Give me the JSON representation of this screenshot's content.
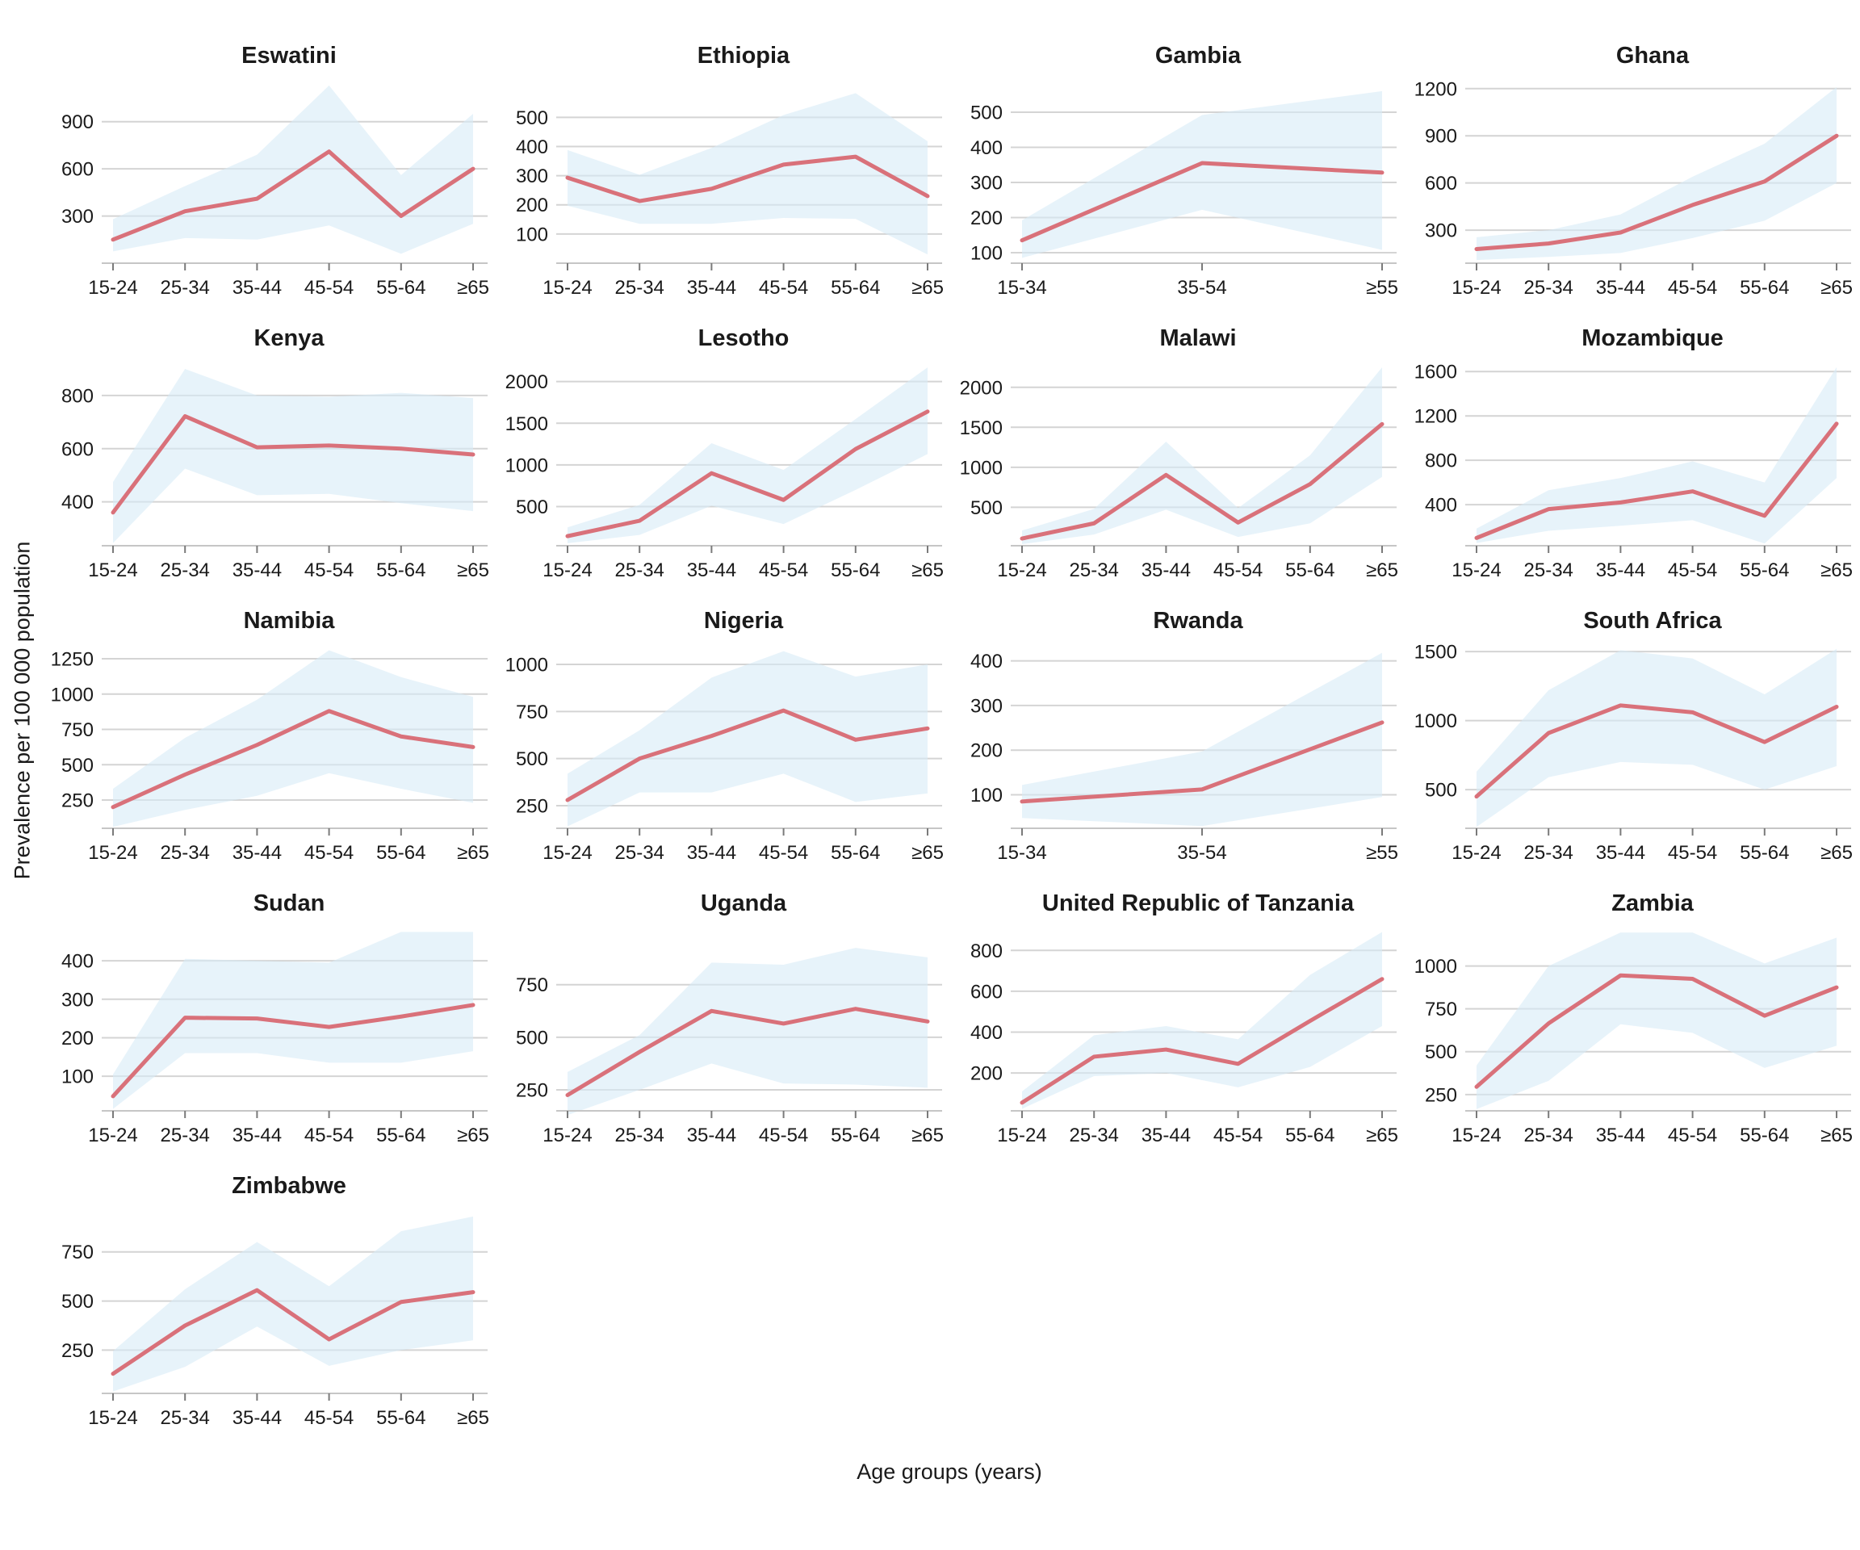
{
  "figure": {
    "y_axis_label": "Prevalence per 100 000 population",
    "x_axis_label": "Age groups (years)",
    "colors": {
      "line": "#d9717a",
      "band": "#d7ebf7",
      "gridline": "#d4d4d4",
      "axis_line": "#c6c6c6",
      "tick_mark": "#7a7a7a"
    }
  },
  "chart_data": [
    {
      "type": "line",
      "title": "Eswatini",
      "categories": [
        "15-24",
        "25-34",
        "35-44",
        "45-54",
        "55-64",
        "≥65"
      ],
      "values": [
        150,
        330,
        410,
        710,
        300,
        600
      ],
      "lower_ci": [
        75,
        160,
        150,
        240,
        60,
        250
      ],
      "upper_ci": [
        280,
        490,
        690,
        1130,
        560,
        950
      ],
      "yticks": [
        300,
        600,
        900
      ],
      "ylim": [
        0,
        1150
      ]
    },
    {
      "type": "line",
      "title": "Ethiopia",
      "categories": [
        "15-24",
        "25-34",
        "35-44",
        "45-54",
        "55-64",
        "≥65"
      ],
      "values": [
        293,
        213,
        255,
        338,
        365,
        230
      ],
      "lower_ci": [
        197,
        135,
        135,
        155,
        152,
        30
      ],
      "upper_ci": [
        388,
        303,
        395,
        508,
        583,
        418
      ],
      "yticks": [
        100,
        200,
        300,
        400,
        500
      ],
      "ylim": [
        0,
        620
      ]
    },
    {
      "type": "line",
      "title": "Gambia",
      "categories": [
        "15-34",
        "35-54",
        "≥55"
      ],
      "values": [
        135,
        355,
        328
      ],
      "lower_ci": [
        85,
        222,
        108
      ],
      "upper_ci": [
        192,
        492,
        560
      ],
      "yticks": [
        100,
        200,
        300,
        400,
        500
      ],
      "ylim": [
        70,
        585
      ]
    },
    {
      "type": "line",
      "title": "Ghana",
      "categories": [
        "15-24",
        "25-34",
        "35-44",
        "45-54",
        "55-64",
        "≥65"
      ],
      "values": [
        180,
        215,
        285,
        460,
        610,
        900
      ],
      "lower_ci": [
        110,
        130,
        155,
        250,
        360,
        600
      ],
      "upper_ci": [
        255,
        300,
        400,
        640,
        850,
        1210
      ],
      "yticks": [
        300,
        600,
        900,
        1200
      ],
      "ylim": [
        90,
        1240
      ]
    },
    {
      "type": "line",
      "title": "Kenya",
      "categories": [
        "15-24",
        "25-34",
        "35-44",
        "45-54",
        "55-64",
        "≥65"
      ],
      "values": [
        360,
        722,
        605,
        612,
        600,
        578
      ],
      "lower_ci": [
        245,
        525,
        425,
        430,
        395,
        365
      ],
      "upper_ci": [
        475,
        900,
        800,
        795,
        810,
        790
      ],
      "yticks": [
        400,
        600,
        800
      ],
      "ylim": [
        235,
        915
      ]
    },
    {
      "type": "line",
      "title": "Lesotho",
      "categories": [
        "15-24",
        "25-34",
        "35-44",
        "45-54",
        "55-64",
        "≥65"
      ],
      "values": [
        145,
        330,
        900,
        580,
        1190,
        1640
      ],
      "lower_ci": [
        60,
        160,
        510,
        290,
        700,
        1130
      ],
      "upper_ci": [
        250,
        520,
        1260,
        940,
        1550,
        2170
      ],
      "yticks": [
        500,
        1000,
        1500,
        2000
      ],
      "ylim": [
        30,
        2200
      ]
    },
    {
      "type": "line",
      "title": "Malawi",
      "categories": [
        "15-24",
        "25-34",
        "35-44",
        "45-54",
        "55-64",
        "≥65"
      ],
      "values": [
        110,
        300,
        905,
        310,
        790,
        1540
      ],
      "lower_ci": [
        40,
        160,
        470,
        130,
        300,
        880
      ],
      "upper_ci": [
        210,
        480,
        1320,
        490,
        1150,
        2250
      ],
      "yticks": [
        500,
        1000,
        1500,
        2000
      ],
      "ylim": [
        20,
        2280
      ]
    },
    {
      "type": "line",
      "title": "Mozambique",
      "categories": [
        "15-24",
        "25-34",
        "35-44",
        "45-54",
        "55-64",
        "≥65"
      ],
      "values": [
        100,
        360,
        420,
        520,
        300,
        1130
      ],
      "lower_ci": [
        55,
        165,
        210,
        260,
        50,
        640
      ],
      "upper_ci": [
        185,
        530,
        640,
        790,
        600,
        1640
      ],
      "yticks": [
        400,
        800,
        1200,
        1600
      ],
      "ylim": [
        30,
        1660
      ]
    },
    {
      "type": "line",
      "title": "Namibia",
      "categories": [
        "15-24",
        "25-34",
        "35-44",
        "45-54",
        "55-64",
        "≥65"
      ],
      "values": [
        200,
        430,
        640,
        880,
        700,
        625
      ],
      "lower_ci": [
        60,
        180,
        280,
        440,
        330,
        230
      ],
      "upper_ci": [
        330,
        690,
        960,
        1310,
        1120,
        980
      ],
      "yticks": [
        250,
        500,
        750,
        1000,
        1250
      ],
      "ylim": [
        50,
        1330
      ]
    },
    {
      "type": "line",
      "title": "Nigeria",
      "categories": [
        "15-24",
        "25-34",
        "35-44",
        "45-54",
        "55-64",
        "≥65"
      ],
      "values": [
        280,
        500,
        620,
        755,
        600,
        660
      ],
      "lower_ci": [
        140,
        320,
        320,
        420,
        270,
        315
      ],
      "upper_ci": [
        420,
        650,
        930,
        1070,
        935,
        1000
      ],
      "yticks": [
        250,
        500,
        750,
        1000
      ],
      "ylim": [
        130,
        1090
      ]
    },
    {
      "type": "line",
      "title": "Rwanda",
      "categories": [
        "15-34",
        "35-54",
        "≥55"
      ],
      "values": [
        85,
        112,
        262
      ],
      "lower_ci": [
        48,
        30,
        95
      ],
      "upper_ci": [
        122,
        197,
        418
      ],
      "yticks": [
        100,
        200,
        300,
        400
      ],
      "ylim": [
        25,
        430
      ]
    },
    {
      "type": "line",
      "title": "South Africa",
      "categories": [
        "15-24",
        "25-34",
        "35-44",
        "45-54",
        "55-64",
        "≥65"
      ],
      "values": [
        450,
        910,
        1110,
        1060,
        845,
        1100
      ],
      "lower_ci": [
        230,
        590,
        700,
        680,
        500,
        670
      ],
      "upper_ci": [
        630,
        1220,
        1510,
        1450,
        1190,
        1520
      ],
      "yticks": [
        500,
        1000,
        1500
      ],
      "ylim": [
        220,
        1530
      ]
    },
    {
      "type": "line",
      "title": "Sudan",
      "categories": [
        "15-24",
        "25-34",
        "35-44",
        "45-54",
        "55-64",
        "≥65"
      ],
      "values": [
        48,
        252,
        250,
        228,
        255,
        285
      ],
      "lower_ci": [
        15,
        160,
        160,
        135,
        135,
        165
      ],
      "upper_ci": [
        105,
        405,
        400,
        395,
        475,
        475
      ],
      "yticks": [
        100,
        200,
        300,
        400
      ],
      "ylim": [
        10,
        480
      ]
    },
    {
      "type": "line",
      "title": "Uganda",
      "categories": [
        "15-24",
        "25-34",
        "35-44",
        "45-54",
        "55-64",
        "≥65"
      ],
      "values": [
        225,
        430,
        625,
        565,
        635,
        575
      ],
      "lower_ci": [
        130,
        250,
        375,
        280,
        275,
        260
      ],
      "upper_ci": [
        335,
        510,
        855,
        845,
        925,
        880
      ],
      "yticks": [
        250,
        500,
        750
      ],
      "ylim": [
        150,
        1010
      ]
    },
    {
      "type": "line",
      "title": "United Republic of Tanzania",
      "categories": [
        "15-24",
        "25-34",
        "35-44",
        "45-54",
        "55-64",
        "≥65"
      ],
      "values": [
        55,
        280,
        315,
        245,
        455,
        660
      ],
      "lower_ci": [
        25,
        185,
        200,
        130,
        230,
        430
      ],
      "upper_ci": [
        110,
        385,
        430,
        365,
        680,
        890
      ],
      "yticks": [
        200,
        400,
        600,
        800
      ],
      "ylim": [
        15,
        900
      ]
    },
    {
      "type": "line",
      "title": "Zambia",
      "categories": [
        "15-24",
        "25-34",
        "35-44",
        "45-54",
        "55-64",
        "≥65"
      ],
      "values": [
        295,
        665,
        945,
        925,
        710,
        875
      ],
      "lower_ci": [
        165,
        330,
        660,
        610,
        405,
        535
      ],
      "upper_ci": [
        420,
        1000,
        1195,
        1195,
        1015,
        1165
      ],
      "yticks": [
        250,
        500,
        750,
        1000
      ],
      "ylim": [
        155,
        1210
      ]
    },
    {
      "type": "line",
      "title": "Zimbabwe",
      "categories": [
        "15-24",
        "25-34",
        "35-44",
        "45-54",
        "55-64",
        "≥65"
      ],
      "values": [
        130,
        375,
        555,
        305,
        495,
        545
      ],
      "lower_ci": [
        40,
        165,
        370,
        170,
        250,
        300
      ],
      "upper_ci": [
        245,
        560,
        800,
        575,
        855,
        930
      ],
      "yticks": [
        250,
        500,
        750
      ],
      "ylim": [
        30,
        950
      ]
    }
  ]
}
